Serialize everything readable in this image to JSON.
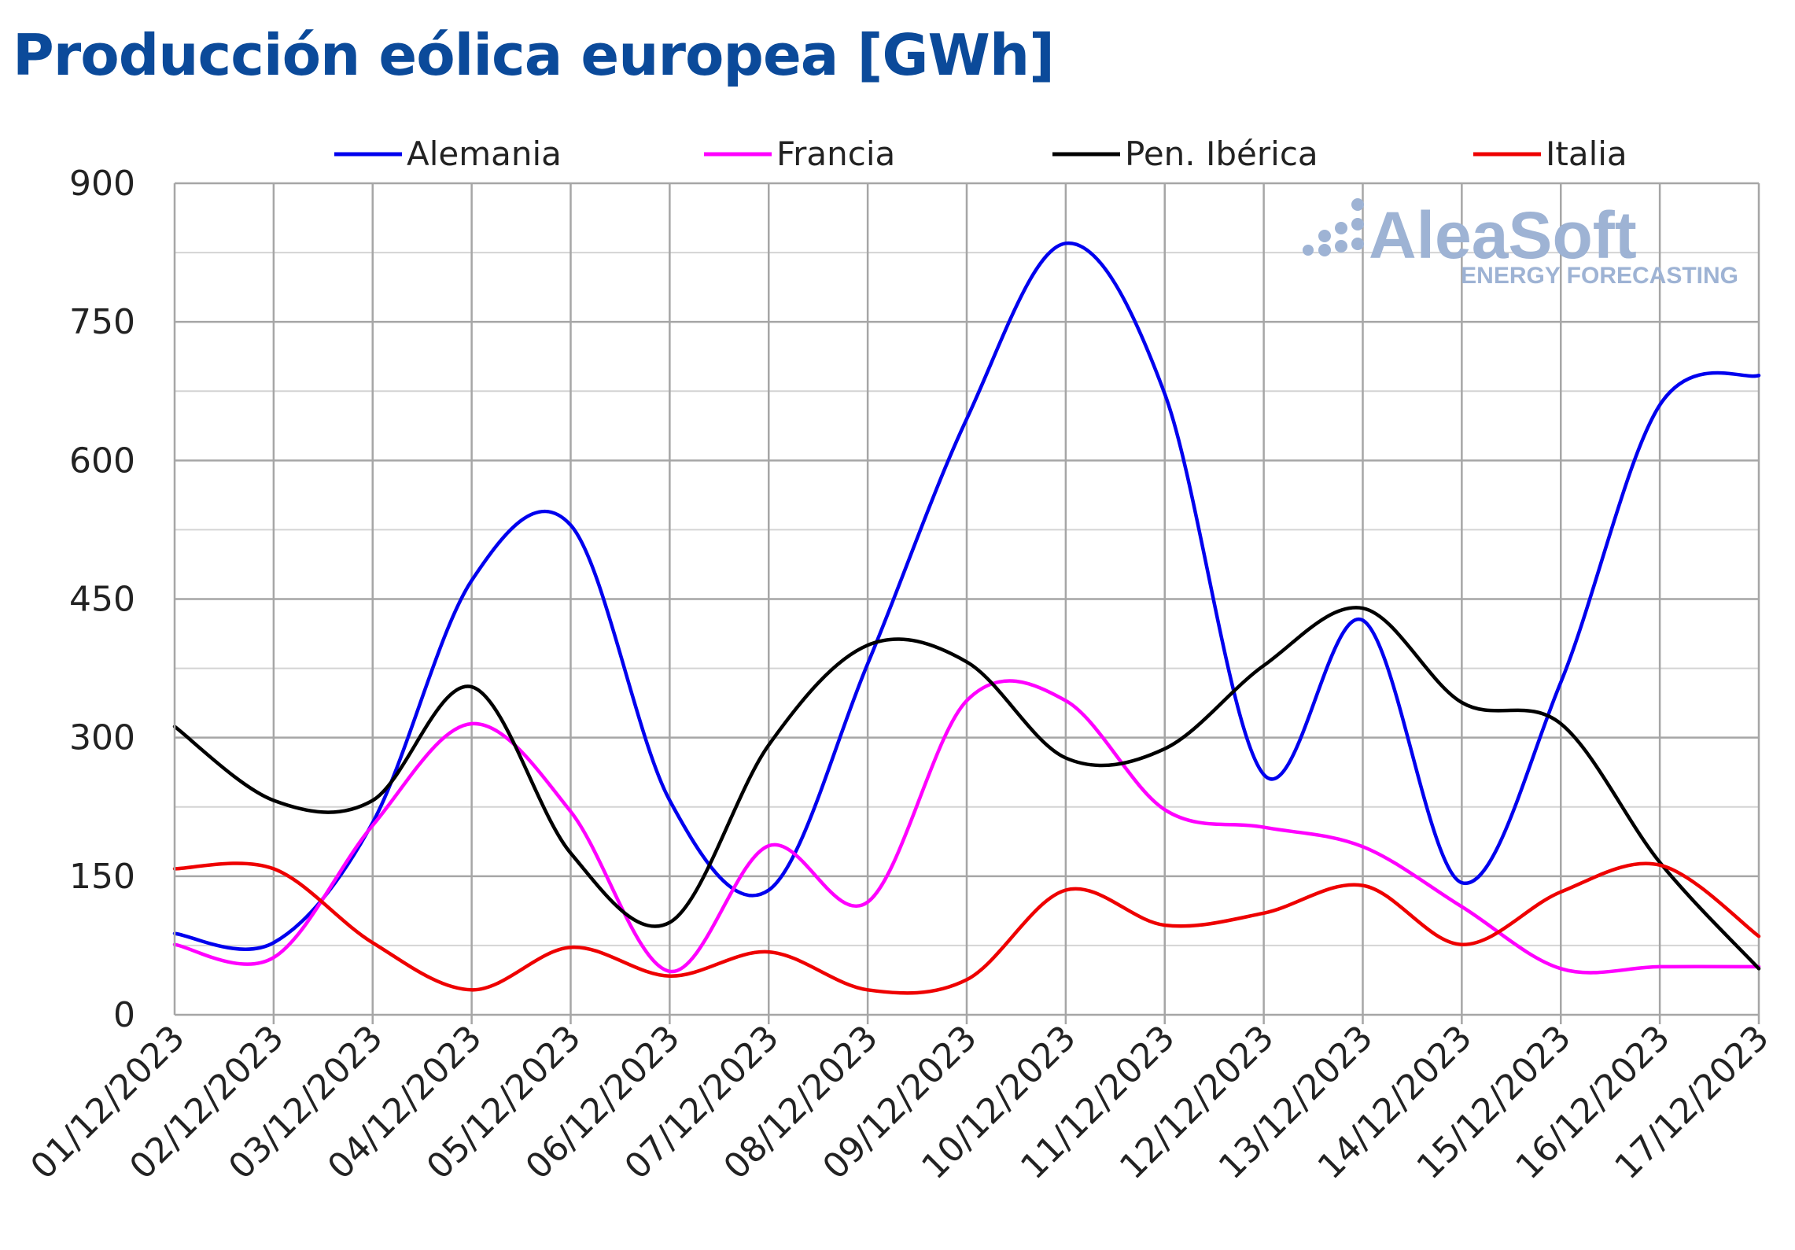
{
  "chart_data": {
    "type": "line",
    "title": "Producción eólica europea [GWh]",
    "xlabel": "",
    "ylabel": "",
    "ylim": [
      0,
      900
    ],
    "yticks": [
      0,
      150,
      300,
      450,
      600,
      750,
      900
    ],
    "grid": true,
    "legend_position": "top",
    "categories": [
      "01/12/2023",
      "02/12/2023",
      "03/12/2023",
      "04/12/2023",
      "05/12/2023",
      "06/12/2023",
      "07/12/2023",
      "08/12/2023",
      "09/12/2023",
      "10/12/2023",
      "11/12/2023",
      "12/12/2023",
      "13/12/2023",
      "14/12/2023",
      "15/12/2023",
      "16/12/2023",
      "17/12/2023"
    ],
    "series": [
      {
        "name": "Alemania",
        "color": "#0000ee",
        "values": [
          88,
          78,
          208,
          470,
          530,
          232,
          135,
          380,
          645,
          835,
          672,
          260,
          427,
          143,
          360,
          660,
          692
        ]
      },
      {
        "name": "Francia",
        "color": "#ff00ff",
        "values": [
          76,
          62,
          205,
          315,
          220,
          47,
          183,
          122,
          340,
          340,
          222,
          203,
          182,
          117,
          50,
          52,
          52
        ]
      },
      {
        "name": "Pen. Ibérica",
        "color": "#000000",
        "values": [
          312,
          232,
          232,
          355,
          175,
          100,
          292,
          400,
          382,
          278,
          288,
          378,
          440,
          338,
          315,
          165,
          50
        ]
      },
      {
        "name": "Italia",
        "color": "#ee0000",
        "values": [
          158,
          158,
          78,
          27,
          73,
          42,
          68,
          27,
          38,
          135,
          97,
          110,
          140,
          76,
          133,
          162,
          85
        ]
      }
    ]
  },
  "watermark": {
    "brand": "AleaSoft",
    "tagline": "ENERGY FORECASTING"
  }
}
